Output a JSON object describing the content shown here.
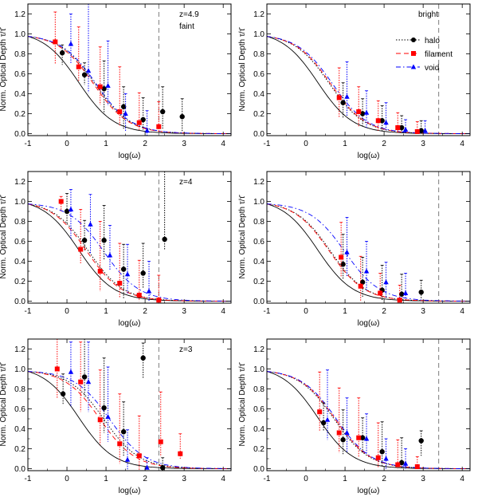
{
  "colors": {
    "halo": "#000000",
    "filament": "#ff0000",
    "void": "#0000ff",
    "model": "#000000"
  },
  "legend": {
    "halo": "halo",
    "filament": "filament",
    "void": "void"
  },
  "chart_data": [
    {
      "type": "scatter",
      "panel": "top-left",
      "xlabel": "log(ω)",
      "ylabel": "Norm. Optical Depth τ/τ̄",
      "xlim": [
        -1,
        4.2
      ],
      "ylim": [
        -0.02,
        1.3
      ],
      "xticks": [
        "-1",
        "0",
        "1",
        "2",
        "3",
        "4"
      ],
      "yticks": [
        "0.0",
        "0.2",
        "0.4",
        "0.6",
        "0.8",
        "1.0",
        "1.2"
      ],
      "annotations": [
        "z=4.9",
        "faint"
      ],
      "vline": 2.35,
      "curves": {
        "model_x0": 0.3,
        "halo_x0": 0.72,
        "filament_x0": 0.68,
        "void_x0": 0.75
      },
      "series": [
        {
          "name": "halo",
          "points": [
            [
              -0.12,
              0.81,
              0.08,
              0.12
            ],
            [
              0.45,
              0.59,
              0.12,
              0.1
            ],
            [
              0.95,
              0.45,
              0.28,
              0.25
            ],
            [
              1.45,
              0.27,
              0.2,
              0.22
            ],
            [
              1.95,
              0.14,
              0.22,
              0.1
            ],
            [
              2.45,
              0.22,
              0.25,
              0.18
            ],
            [
              2.95,
              0.17,
              0.18,
              0.15
            ]
          ]
        },
        {
          "name": "filament",
          "points": [
            [
              -0.3,
              0.92,
              0.3,
              0.22
            ],
            [
              0.3,
              0.67,
              0.4,
              0.15
            ],
            [
              0.85,
              0.47,
              0.4,
              0.18
            ],
            [
              1.35,
              0.22,
              0.45,
              0.15
            ],
            [
              1.85,
              0.11,
              0.3,
              0.08
            ],
            [
              2.35,
              0.07,
              0.25,
              0.06
            ]
          ]
        },
        {
          "name": "void",
          "points": [
            [
              0.1,
              0.9,
              0.3,
              0.2
            ],
            [
              0.55,
              0.63,
              0.7,
              0.22
            ],
            [
              1.05,
              0.48,
              0.45,
              0.2
            ],
            [
              1.5,
              0.2,
              0.2,
              0.18
            ],
            [
              2.05,
              0.03,
              0.2,
              0.05
            ]
          ]
        }
      ]
    },
    {
      "type": "scatter",
      "panel": "top-right",
      "xlabel": "log(ω)",
      "ylabel": "Norm. Optical Depth τ/τ̄",
      "xlim": [
        -1,
        4.2
      ],
      "ylim": [
        -0.02,
        1.3
      ],
      "xticks": [
        "-1",
        "0",
        "1",
        "2",
        "3",
        "4"
      ],
      "yticks": [
        "0.0",
        "0.2",
        "0.4",
        "0.6",
        "0.8",
        "1.0",
        "1.2"
      ],
      "annotations": [
        "bright"
      ],
      "vline": 3.4,
      "curves": {
        "model_x0": 0.3,
        "halo_x0": 0.6,
        "filament_x0": 0.63,
        "void_x0": 0.68
      },
      "series": [
        {
          "name": "halo",
          "points": [
            [
              0.95,
              0.31,
              0.2,
              0.15
            ],
            [
              1.45,
              0.2,
              0.15,
              0.12
            ],
            [
              1.95,
              0.13,
              0.15,
              0.1
            ],
            [
              2.45,
              0.06,
              0.12,
              0.05
            ],
            [
              2.95,
              0.03,
              0.1,
              0.03
            ]
          ]
        },
        {
          "name": "filament",
          "points": [
            [
              0.85,
              0.36,
              0.3,
              0.2
            ],
            [
              1.35,
              0.22,
              0.25,
              0.15
            ],
            [
              1.85,
              0.13,
              0.2,
              0.1
            ],
            [
              2.35,
              0.06,
              0.15,
              0.05
            ],
            [
              2.85,
              0.02,
              0.1,
              0.02
            ]
          ]
        },
        {
          "name": "void",
          "points": [
            [
              1.05,
              0.37,
              0.35,
              0.2
            ],
            [
              1.55,
              0.21,
              0.22,
              0.15
            ],
            [
              2.05,
              0.11,
              0.2,
              0.08
            ],
            [
              2.55,
              0.04,
              0.1,
              0.03
            ],
            [
              3.05,
              0.03,
              0.1,
              0.03
            ]
          ]
        }
      ]
    },
    {
      "type": "scatter",
      "panel": "middle-left",
      "xlabel": "log(ω)",
      "ylabel": "Norm. Optical Depth τ/τ̄",
      "xlim": [
        -1,
        4.2
      ],
      "ylim": [
        -0.02,
        1.3
      ],
      "xticks": [
        "-1",
        "0",
        "1",
        "2",
        "3",
        "4"
      ],
      "yticks": [
        "0.0",
        "0.2",
        "0.4",
        "0.6",
        "0.8",
        "1.0",
        "1.2"
      ],
      "annotations": [
        "z=4"
      ],
      "vline": 2.35,
      "curves": {
        "model_x0": 0.3,
        "halo_x0": 0.55,
        "filament_x0": 0.5,
        "void_x0": 0.95
      },
      "series": [
        {
          "name": "halo",
          "points": [
            [
              0.0,
              0.9,
              0.18,
              0.12
            ],
            [
              0.45,
              0.61,
              0.2,
              0.1
            ],
            [
              0.95,
              0.61,
              0.35,
              0.2
            ],
            [
              1.45,
              0.32,
              0.25,
              0.3
            ],
            [
              1.95,
              0.28,
              0.3,
              0.15
            ],
            [
              2.5,
              0.62,
              0.9,
              0.1
            ]
          ]
        },
        {
          "name": "filament",
          "points": [
            [
              -0.15,
              1.0,
              0.05,
              0.1
            ],
            [
              0.35,
              0.52,
              0.4,
              0.15
            ],
            [
              0.85,
              0.3,
              0.5,
              0.2
            ],
            [
              1.35,
              0.18,
              0.4,
              0.15
            ],
            [
              1.85,
              0.06,
              0.35,
              0.06
            ],
            [
              2.35,
              0.01,
              0.25,
              0.02
            ]
          ]
        },
        {
          "name": "void",
          "points": [
            [
              0.1,
              0.92,
              0.2,
              0.3
            ],
            [
              0.6,
              0.77,
              0.3,
              0.3
            ],
            [
              1.1,
              0.46,
              0.3,
              0.15
            ],
            [
              1.55,
              0.27,
              0.3,
              0.2
            ],
            [
              2.1,
              0.1,
              0.3,
              0.1
            ]
          ]
        }
      ]
    },
    {
      "type": "scatter",
      "panel": "middle-right",
      "xlabel": "log(ω)",
      "ylabel": "Norm. Optical Depth τ/τ̄",
      "xlim": [
        -1,
        4.2
      ],
      "ylim": [
        -0.02,
        1.3
      ],
      "xticks": [
        "-1",
        "0",
        "1",
        "2",
        "3",
        "4"
      ],
      "yticks": [
        "0.0",
        "0.2",
        "0.4",
        "0.6",
        "0.8",
        "1.0",
        "1.2"
      ],
      "annotations": [],
      "vline": 3.4,
      "curves": {
        "model_x0": 0.3,
        "halo_x0": 0.63,
        "filament_x0": 0.6,
        "void_x0": 1.0
      },
      "series": [
        {
          "name": "halo",
          "points": [
            [
              0.95,
              0.37,
              0.3,
              0.15
            ],
            [
              1.45,
              0.19,
              0.25,
              0.15
            ],
            [
              1.95,
              0.11,
              0.25,
              0.1
            ],
            [
              2.45,
              0.07,
              0.2,
              0.05
            ],
            [
              2.95,
              0.09,
              0.12,
              0.06
            ]
          ]
        },
        {
          "name": "filament",
          "points": [
            [
              0.9,
              0.44,
              0.35,
              0.2
            ],
            [
              1.4,
              0.15,
              0.3,
              0.15
            ],
            [
              1.9,
              0.08,
              0.2,
              0.06
            ],
            [
              2.4,
              0.01,
              0.15,
              0.02
            ]
          ]
        },
        {
          "name": "void",
          "points": [
            [
              1.05,
              0.49,
              0.35,
              0.25
            ],
            [
              1.55,
              0.3,
              0.3,
              0.2
            ],
            [
              2.05,
              0.19,
              0.2,
              0.15
            ],
            [
              2.55,
              0.08,
              0.2,
              0.05
            ]
          ]
        }
      ]
    },
    {
      "type": "scatter",
      "panel": "bottom-left",
      "xlabel": "log(ω)",
      "ylabel": "Norm. Optical Depth τ/τ̄",
      "xlim": [
        -1,
        4.2
      ],
      "ylim": [
        -0.02,
        1.3
      ],
      "xticks": [
        "-1",
        "0",
        "1",
        "2",
        "3",
        "4"
      ],
      "yticks": [
        "0.0",
        "0.2",
        "0.4",
        "0.6",
        "0.8",
        "1.0",
        "1.2"
      ],
      "annotations": [
        "z=3"
      ],
      "vline": 2.35,
      "curves": {
        "model_x0": 0.3,
        "halo_x0": 0.95,
        "filament_x0": 0.85,
        "void_x0": 1.1
      },
      "series": [
        {
          "name": "halo",
          "points": [
            [
              -0.1,
              0.75,
              0.2,
              0.1
            ],
            [
              0.45,
              0.92,
              0.5,
              0.2
            ],
            [
              0.95,
              0.61,
              0.5,
              0.25
            ],
            [
              1.45,
              0.37,
              0.3,
              0.25
            ],
            [
              1.95,
              1.11,
              0.15,
              0.2
            ],
            [
              2.45,
              0.01,
              0.1,
              0.02
            ]
          ]
        },
        {
          "name": "filament",
          "points": [
            [
              -0.25,
              1.0,
              0.3,
              0.3
            ],
            [
              0.35,
              0.87,
              0.4,
              0.3
            ],
            [
              0.85,
              0.49,
              0.5,
              0.25
            ],
            [
              1.35,
              0.25,
              0.5,
              0.2
            ],
            [
              1.85,
              0.13,
              0.4,
              0.15
            ],
            [
              2.4,
              0.27,
              0.5,
              0.15
            ],
            [
              2.9,
              0.15,
              0.2,
              0.05
            ]
          ]
        },
        {
          "name": "void",
          "points": [
            [
              0.1,
              0.97,
              0.3,
              0.35
            ],
            [
              0.55,
              0.87,
              0.4,
              0.3
            ],
            [
              1.05,
              0.52,
              0.5,
              0.25
            ],
            [
              1.55,
              0.09,
              0.3,
              0.1
            ],
            [
              2.05,
              0.01,
              0.1,
              0.02
            ]
          ]
        }
      ]
    },
    {
      "type": "scatter",
      "panel": "bottom-right",
      "xlabel": "log(ω)",
      "ylabel": "Norm. Optical Depth τ/τ̄",
      "xlim": [
        -1,
        4.2
      ],
      "ylim": [
        -0.02,
        1.3
      ],
      "xticks": [
        "-1",
        "0",
        "1",
        "2",
        "3",
        "4"
      ],
      "yticks": [
        "0.0",
        "0.2",
        "0.4",
        "0.6",
        "0.8",
        "1.0",
        "1.2"
      ],
      "annotations": [],
      "vline": 3.4,
      "curves": {
        "model_x0": 0.3,
        "halo_x0": 0.72,
        "filament_x0": 0.75,
        "void_x0": 0.78
      },
      "series": [
        {
          "name": "halo",
          "points": [
            [
              0.45,
              0.46,
              0.2,
              0.08
            ],
            [
              0.95,
              0.29,
              0.3,
              0.15
            ],
            [
              1.45,
              0.31,
              0.2,
              0.15
            ],
            [
              1.95,
              0.17,
              0.3,
              0.15
            ],
            [
              2.45,
              0.06,
              0.25,
              0.05
            ],
            [
              2.95,
              0.28,
              0.1,
              0.15
            ]
          ]
        },
        {
          "name": "filament",
          "points": [
            [
              0.35,
              0.57,
              0.4,
              0.2
            ],
            [
              0.85,
              0.36,
              0.45,
              0.2
            ],
            [
              1.35,
              0.31,
              0.4,
              0.2
            ],
            [
              1.85,
              0.11,
              0.35,
              0.1
            ],
            [
              2.35,
              0.04,
              0.25,
              0.04
            ],
            [
              2.85,
              0.02,
              0.1,
              0.02
            ]
          ]
        },
        {
          "name": "void",
          "points": [
            [
              0.55,
              0.49,
              0.5,
              0.2
            ],
            [
              1.05,
              0.36,
              0.35,
              0.2
            ],
            [
              1.55,
              0.3,
              0.25,
              0.15
            ],
            [
              2.05,
              0.1,
              0.2,
              0.1
            ],
            [
              2.55,
              0.05,
              0.15,
              0.05
            ]
          ]
        }
      ]
    }
  ]
}
